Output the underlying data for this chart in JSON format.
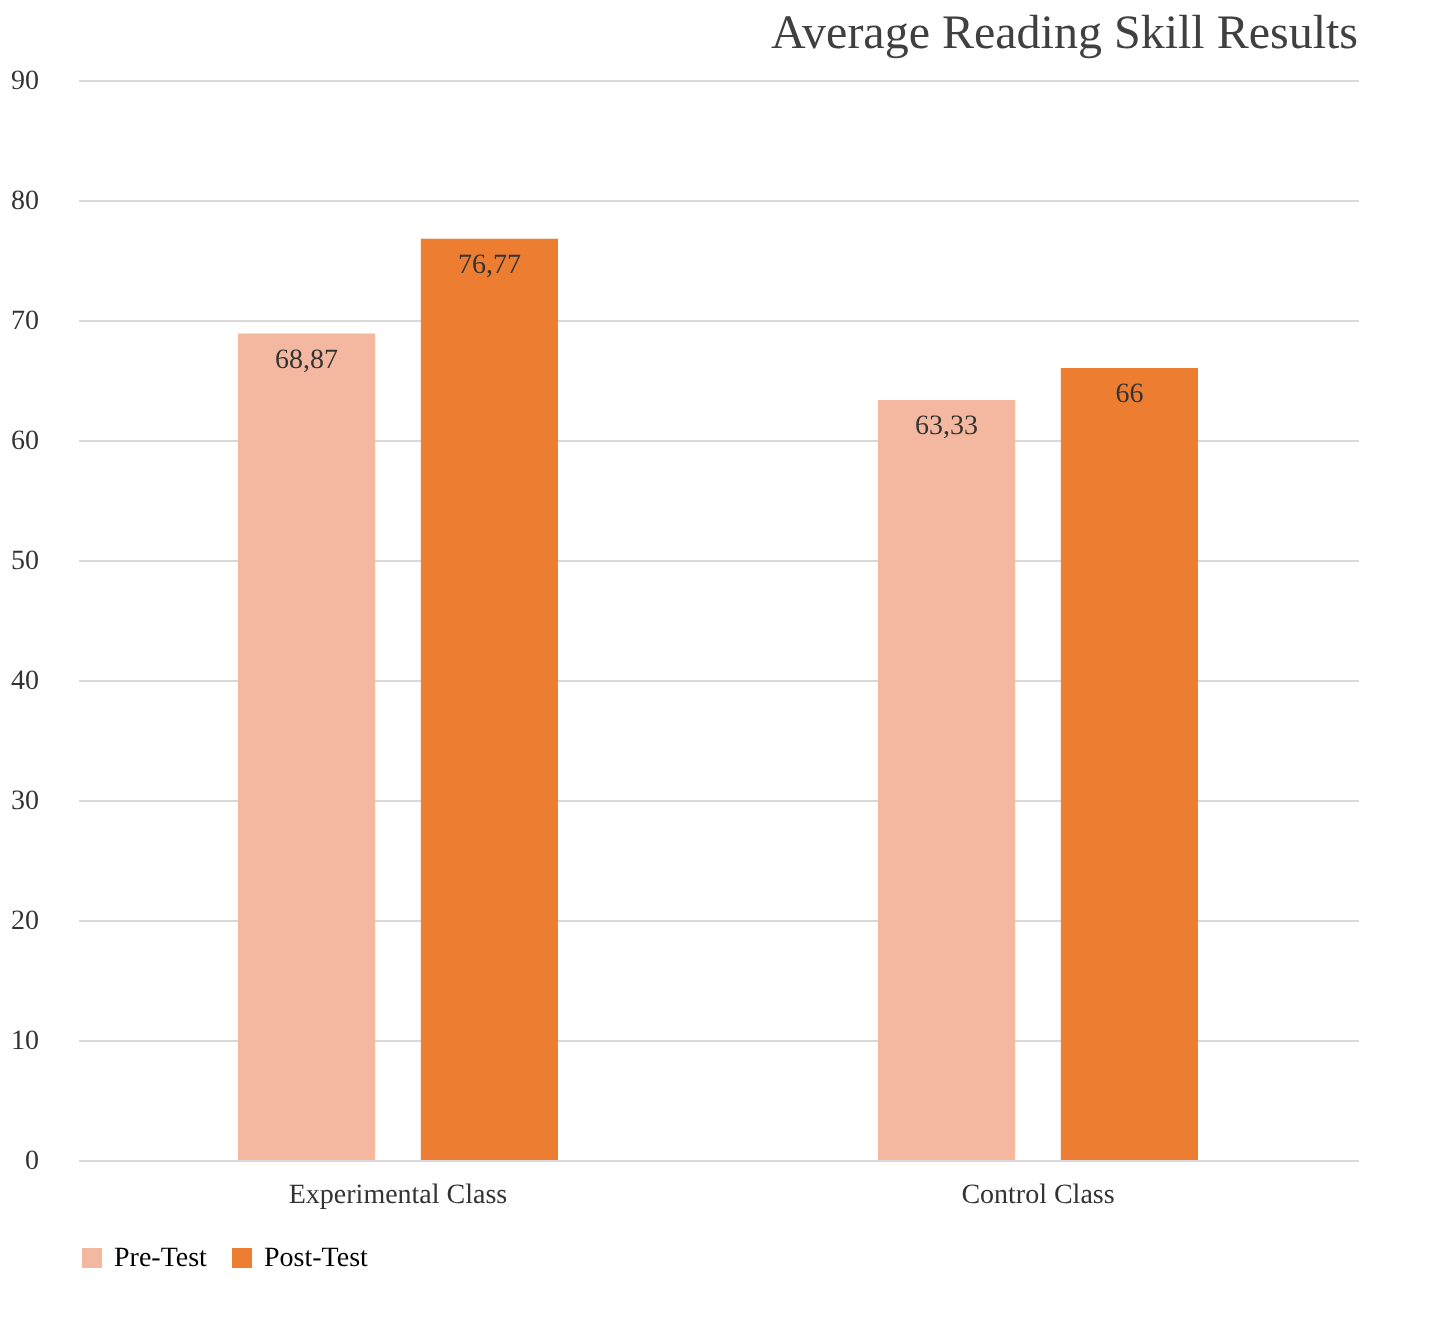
{
  "chart_data": {
    "type": "bar",
    "title": "Average Reading Skill Results",
    "categories": [
      "Experimental Class",
      "Control Class"
    ],
    "series": [
      {
        "name": "Pre-Test",
        "color": "#f4b8a0",
        "values": [
          68.87,
          63.33
        ],
        "value_labels": [
          "68,87",
          "63,33"
        ]
      },
      {
        "name": "Post-Test",
        "color": "#ed7d31",
        "values": [
          76.77,
          66
        ],
        "value_labels": [
          "76,77",
          "66"
        ]
      }
    ],
    "ylim": [
      0,
      90
    ],
    "yticks": [
      0,
      10,
      20,
      30,
      40,
      50,
      60,
      70,
      80,
      90
    ],
    "grid": "y",
    "legend": "bottom"
  }
}
